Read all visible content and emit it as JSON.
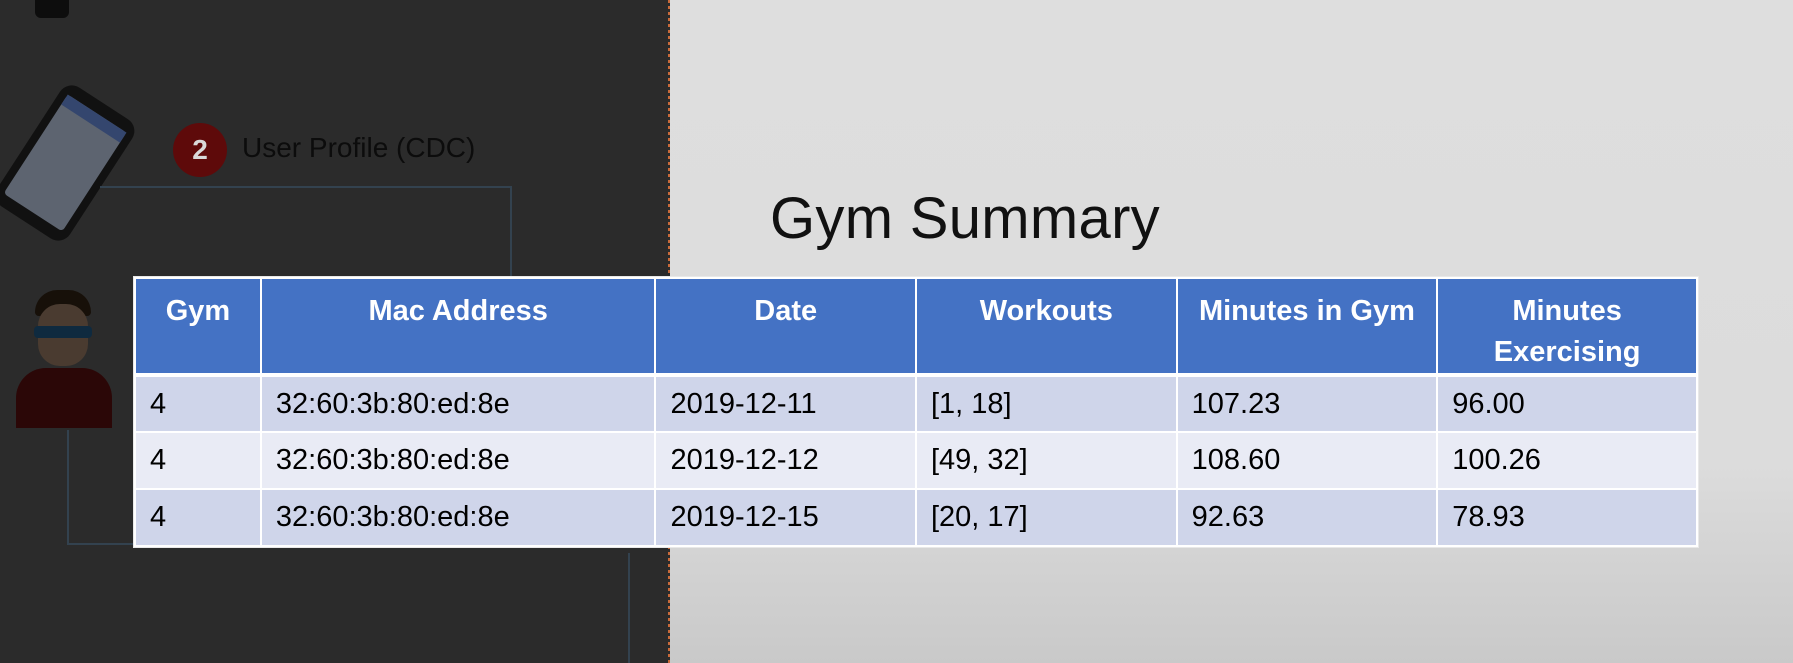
{
  "diagram": {
    "step_number": "2",
    "step_label": "User Profile (CDC)"
  },
  "title": "Gym Summary",
  "table": {
    "headers": [
      "Gym",
      "Mac Address",
      "Date",
      "Workouts",
      "Minutes in Gym",
      "Minutes Exercising"
    ],
    "rows": [
      [
        "4",
        "32:60:3b:80:ed:8e",
        "2019-12-11",
        "[1, 18]",
        "107.23",
        "96.00"
      ],
      [
        "4",
        "32:60:3b:80:ed:8e",
        "2019-12-12",
        "[49, 32]",
        "108.60",
        "100.26"
      ],
      [
        "4",
        "32:60:3b:80:ed:8e",
        "2019-12-15",
        "[20, 17]",
        "92.63",
        "78.93"
      ]
    ]
  },
  "colors": {
    "header_bg": "#4472c4",
    "row_band_1": "#cfd5ea",
    "row_band_2": "#e9ebf5",
    "badge": "#5e0a0a"
  },
  "icons": {
    "phone": "smartphone-icon",
    "person": "person-avatar-icon"
  }
}
